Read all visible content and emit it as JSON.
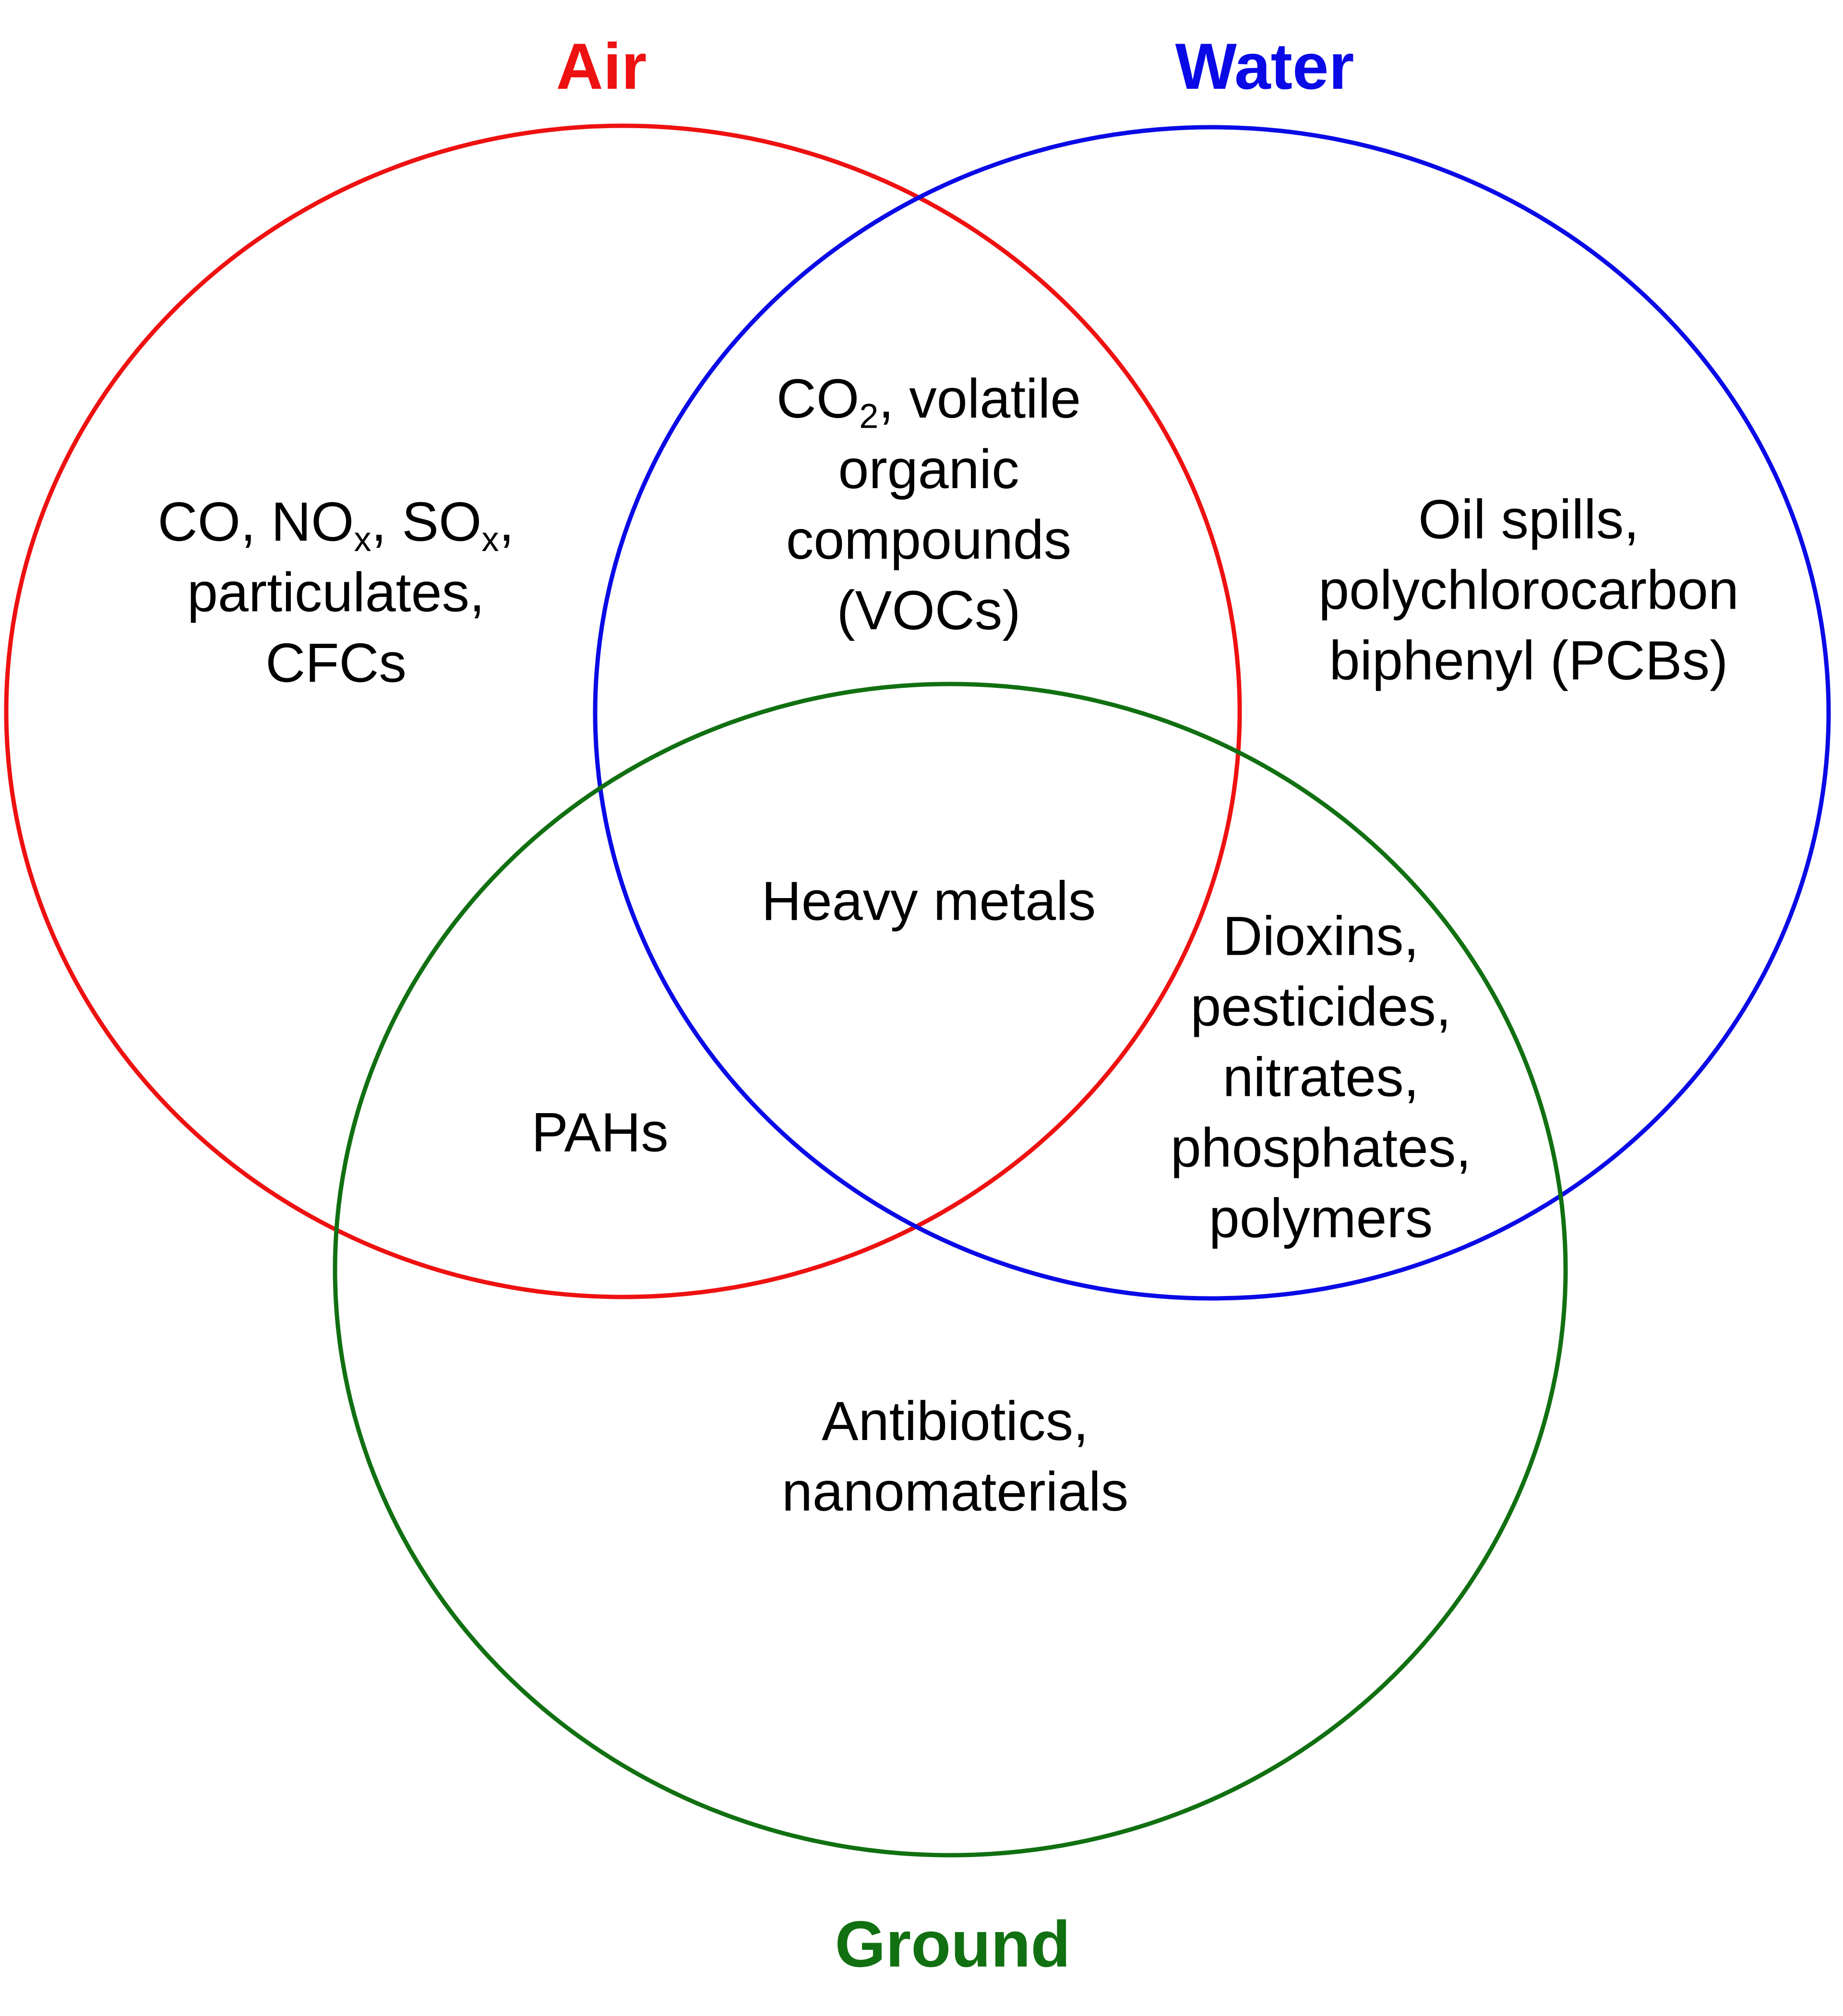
{
  "colors": {
    "air": "#ee1111",
    "water": "#0a0ae6",
    "ground": "#117011",
    "text": "#000000",
    "background": "#ffffff"
  },
  "sets": {
    "air": {
      "label": "Air"
    },
    "water": {
      "label": "Water"
    },
    "ground": {
      "label": "Ground"
    }
  },
  "regions": {
    "air_only": {
      "line1": [
        "CO, NO",
        "x",
        ", SO",
        "x",
        ","
      ],
      "line2": "particulates,",
      "line3": "CFCs"
    },
    "air_water": {
      "line1": [
        "CO",
        "2",
        ", volatile"
      ],
      "line2": "organic",
      "line3": "compounds",
      "line4": "(VOCs)"
    },
    "water_only": {
      "line1": "Oil spills,",
      "line2": "polychlorocarbon",
      "line3": "biphenyl (PCBs)"
    },
    "all_three": {
      "line1": "Heavy metals"
    },
    "air_ground": {
      "line1": "PAHs"
    },
    "water_ground": {
      "line1": "Dioxins,",
      "line2": "pesticides,",
      "line3": "nitrates,",
      "line4": "phosphates,",
      "line5": "polymers"
    },
    "ground_only": {
      "line1": "Antibiotics,",
      "line2": "nanomaterials"
    }
  }
}
